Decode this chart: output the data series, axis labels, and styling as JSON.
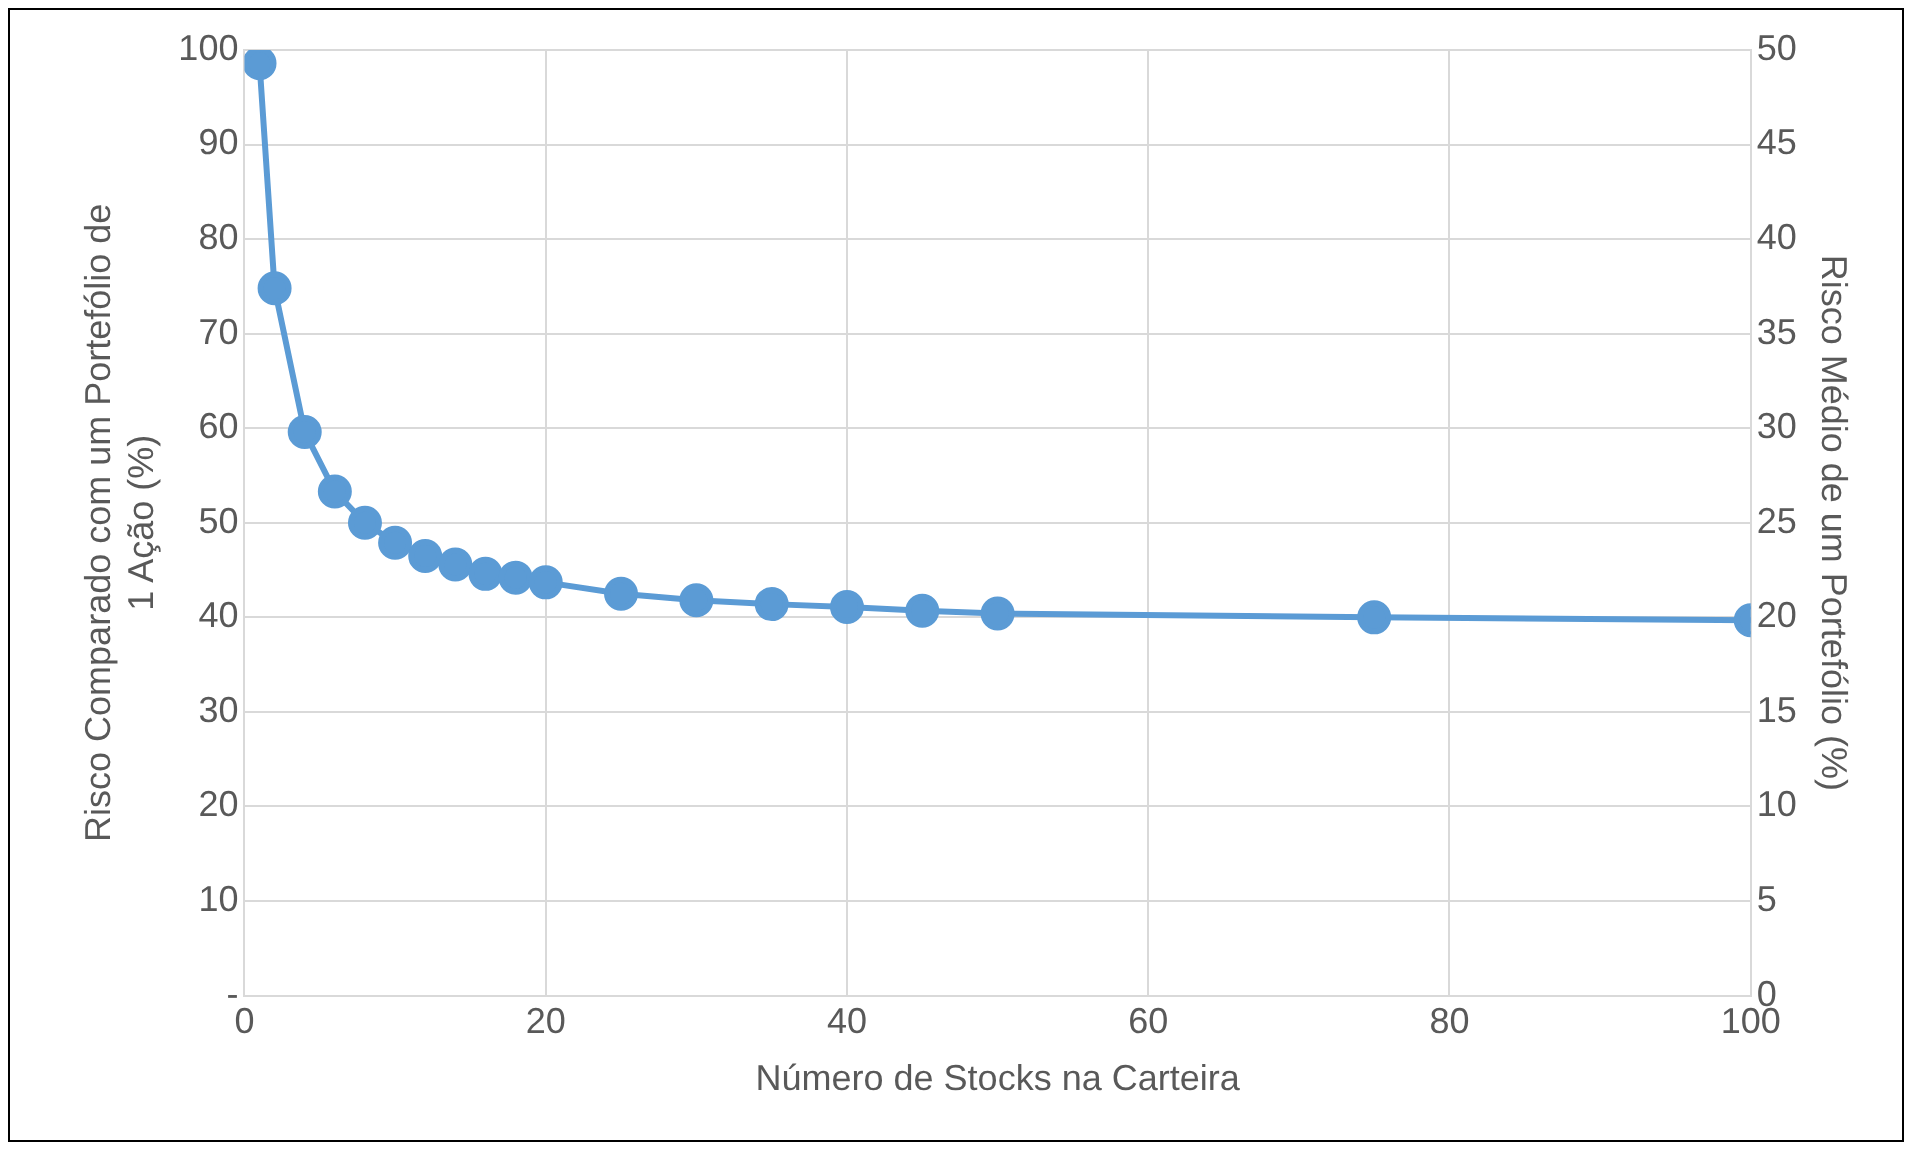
{
  "chart_data": {
    "type": "line",
    "xlabel": "Número de Stocks na Carteira",
    "ylabel": "Risco Comparado com um Portefólio de 1 Ação (%)",
    "y2label": "Risco Médio de um Portefólio (%)",
    "x": [
      1,
      2,
      4,
      6,
      8,
      10,
      12,
      14,
      16,
      18,
      20,
      25,
      30,
      35,
      40,
      45,
      50,
      75,
      100
    ],
    "series": [
      {
        "color": "#5b9bd5",
        "values": [
          98.6,
          74.8,
          59.6,
          53.3,
          50.0,
          47.9,
          46.5,
          45.6,
          44.6,
          44.2,
          43.7,
          42.5,
          41.8,
          41.4,
          41.1,
          40.7,
          40.4,
          40.0,
          39.7
        ]
      }
    ],
    "xlim": [
      0,
      100
    ],
    "xticks": [
      0,
      20,
      40,
      60,
      80,
      100
    ],
    "ylim": [
      0,
      100
    ],
    "yticks": [
      {
        "value": 0,
        "label": "-"
      },
      10,
      20,
      30,
      40,
      50,
      60,
      70,
      80,
      90,
      100
    ],
    "y2lim": [
      0,
      50
    ],
    "y2ticks": [
      0,
      5,
      10,
      15,
      20,
      25,
      30,
      35,
      40,
      45,
      50
    ],
    "grid": true,
    "marker": "circle",
    "line_style": "solid"
  }
}
